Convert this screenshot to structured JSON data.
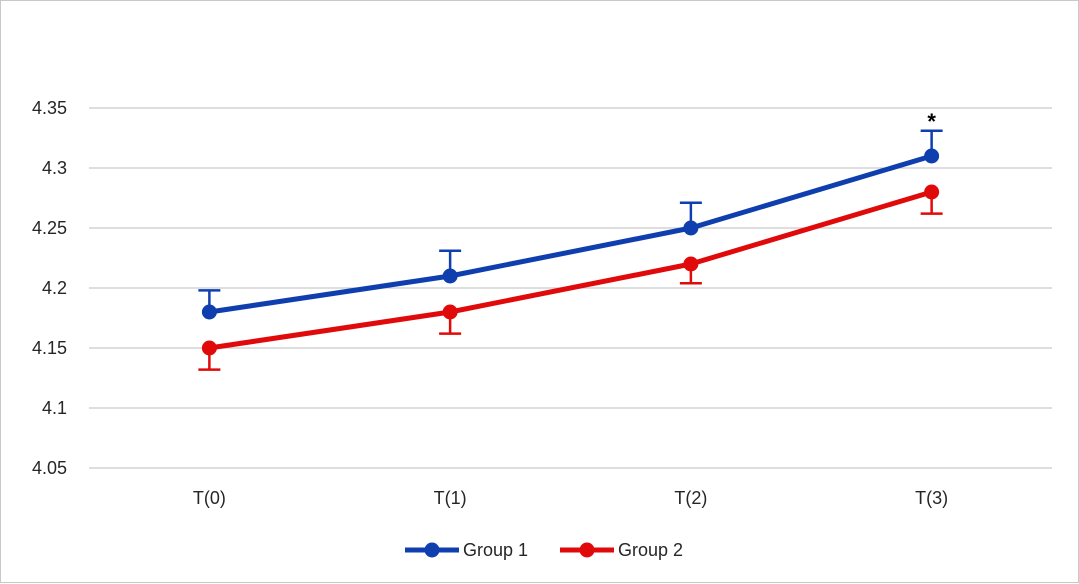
{
  "chart_data": {
    "type": "line",
    "title": "",
    "xlabel": "",
    "ylabel": "",
    "categories": [
      "T(0)",
      "T(1)",
      "T(2)",
      "T(3)"
    ],
    "ylim": [
      4.05,
      4.35
    ],
    "yticks": [
      "4.05",
      "4.1",
      "4.15",
      "4.2",
      "4.25",
      "4.3",
      "4.35"
    ],
    "grid": "horizontal",
    "legend_position": "bottom",
    "series": [
      {
        "name": "Group 1",
        "color": "#0F3FAE",
        "values": [
          4.18,
          4.21,
          4.25,
          4.31
        ],
        "error_plus": [
          0.018,
          0.021,
          0.021,
          0.021
        ],
        "error_direction": "up"
      },
      {
        "name": "Group 2",
        "color": "#E00A0A",
        "values": [
          4.15,
          4.18,
          4.22,
          4.28
        ],
        "error_minus": [
          0.018,
          0.018,
          0.016,
          0.018
        ],
        "error_direction": "down"
      }
    ],
    "annotations": [
      {
        "text": "*",
        "category": "T(3)",
        "series": "Group 1"
      }
    ]
  }
}
